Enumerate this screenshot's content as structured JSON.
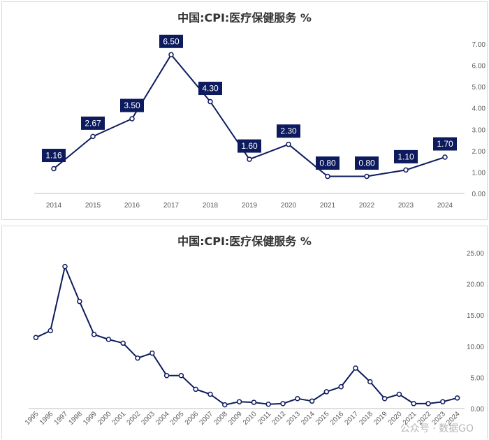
{
  "colors": {
    "series": "#0d1b5e",
    "axis": "#bfbfbf",
    "label_bg": "#0d1b5e",
    "text": "#595959"
  },
  "watermark": "公众号 · 数据GO",
  "chart_data": [
    {
      "type": "line",
      "title": "中国:CPI:医疗保健服务 %",
      "x": [
        "2014",
        "2015",
        "2016",
        "2017",
        "2018",
        "2019",
        "2020",
        "2021",
        "2022",
        "2023",
        "2024"
      ],
      "series": [
        {
          "name": "中国:CPI:医疗保健服务",
          "values": [
            1.16,
            2.67,
            3.5,
            6.5,
            4.3,
            1.6,
            2.3,
            0.8,
            0.8,
            1.1,
            1.7
          ]
        }
      ],
      "data_labels": [
        "1.16",
        "2.67",
        "3.50",
        "6.50",
        "4.30",
        "1.60",
        "2.30",
        "0.80",
        "0.80",
        "1.10",
        "1.70"
      ],
      "ylim": [
        0,
        7
      ],
      "yticks": [
        "0.00",
        "1.00",
        "2.00",
        "3.00",
        "4.00",
        "5.00",
        "6.00",
        "7.00"
      ],
      "yaxis": "right",
      "xlabel": "",
      "ylabel": ""
    },
    {
      "type": "line",
      "title": "中国:CPI:医疗保健服务 %",
      "x": [
        "1995",
        "1996",
        "1997",
        "1998",
        "1999",
        "2000",
        "2001",
        "2002",
        "2003",
        "2004",
        "2005",
        "2006",
        "2007",
        "2008",
        "2009",
        "2010",
        "2011",
        "2012",
        "2013",
        "2014",
        "2015",
        "2016",
        "2017",
        "2018",
        "2019",
        "2020",
        "2021",
        "2022",
        "2023",
        "2024"
      ],
      "series": [
        {
          "name": "中国:CPI:医疗保健服务",
          "values": [
            11.4,
            12.5,
            22.8,
            17.2,
            11.9,
            11.1,
            10.5,
            8.1,
            8.9,
            5.3,
            5.3,
            3.1,
            2.3,
            0.6,
            1.1,
            1.0,
            0.7,
            0.8,
            1.6,
            1.2,
            2.7,
            3.5,
            6.5,
            4.3,
            1.6,
            2.3,
            0.8,
            0.8,
            1.1,
            1.7
          ]
        }
      ],
      "ylim": [
        0,
        25
      ],
      "yticks": [
        "0.00",
        "5.00",
        "10.00",
        "15.00",
        "20.00",
        "25.00"
      ],
      "yaxis": "right",
      "xlabel": "",
      "ylabel": ""
    }
  ]
}
